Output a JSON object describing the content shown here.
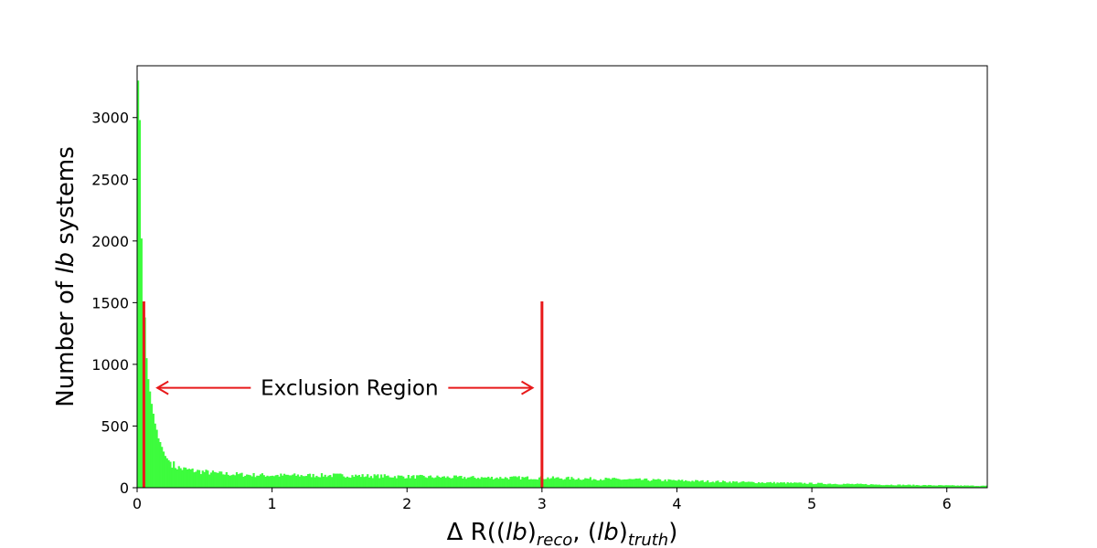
{
  "chart_data": {
    "type": "histogram",
    "xlabel": {
      "prefix": "Δ R((",
      "lb1": "lb",
      "sub1": "reco",
      "mid": ", (",
      "lb2": "lb",
      "sub2": "truth",
      "suffix": ")"
    },
    "ylabel": {
      "prefix": "Number of ",
      "italic": "lb",
      "suffix": " systems"
    },
    "xlim": [
      0,
      6.3
    ],
    "ylim": [
      0,
      3420
    ],
    "xticks": [
      0,
      1,
      2,
      3,
      4,
      5,
      6
    ],
    "yticks": [
      0,
      500,
      1000,
      1500,
      2000,
      2500,
      3000
    ],
    "bar_color": "#3dfc3d",
    "bin_width": 0.0126,
    "profile_points": [
      [
        0.0,
        3300
      ],
      [
        0.0126,
        2980
      ],
      [
        0.0252,
        2020
      ],
      [
        0.0378,
        1510
      ],
      [
        0.0504,
        1380
      ],
      [
        0.063,
        1050
      ],
      [
        0.0756,
        880
      ],
      [
        0.0882,
        780
      ],
      [
        0.1008,
        680
      ],
      [
        0.1134,
        600
      ],
      [
        0.126,
        520
      ],
      [
        0.1386,
        470
      ],
      [
        0.1512,
        400
      ],
      [
        0.1638,
        370
      ],
      [
        0.18,
        320
      ],
      [
        0.2,
        260
      ],
      [
        0.22,
        230
      ],
      [
        0.25,
        200
      ],
      [
        0.28,
        170
      ],
      [
        0.32,
        155
      ],
      [
        0.4,
        140
      ],
      [
        0.6,
        115
      ],
      [
        0.8,
        105
      ],
      [
        1.0,
        100
      ],
      [
        1.5,
        100
      ],
      [
        2.0,
        90
      ],
      [
        2.5,
        82
      ],
      [
        3.0,
        80
      ],
      [
        3.5,
        70
      ],
      [
        4.0,
        58
      ],
      [
        4.5,
        45
      ],
      [
        5.0,
        35
      ],
      [
        5.5,
        25
      ],
      [
        6.0,
        18
      ],
      [
        6.3,
        15
      ]
    ],
    "markers": [
      {
        "x": 0.05,
        "y_top": 1510,
        "color": "#e8191a"
      },
      {
        "x": 3.0,
        "y_top": 1510,
        "color": "#e8191a"
      }
    ],
    "annotation": {
      "text": "Exclusion Region",
      "x_start": 0.15,
      "x_end": 2.93,
      "y": 810,
      "color": "#e8191a"
    }
  }
}
